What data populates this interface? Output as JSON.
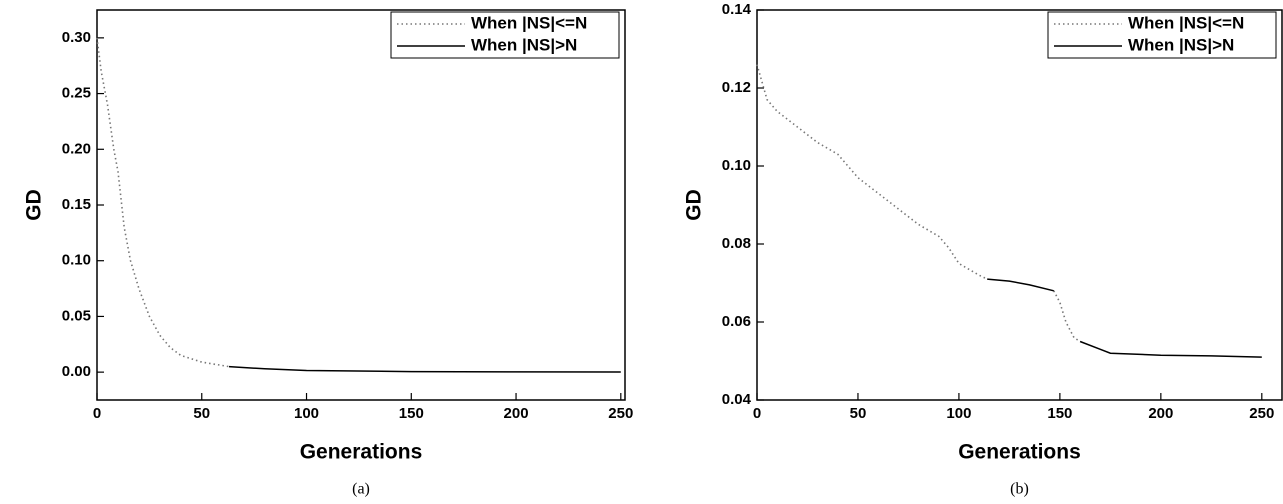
{
  "chart_data": [
    {
      "type": "line",
      "caption": "(a)",
      "x_label": "Generations",
      "y_label": "GD",
      "xlim": [
        0,
        252
      ],
      "ylim": [
        -0.025,
        0.325
      ],
      "xticks": [
        0,
        50,
        100,
        150,
        200,
        250
      ],
      "yticks": [
        {
          "value": 0,
          "label": "0.00"
        },
        0.05,
        {
          "value": 0.1,
          "label": "0.10"
        },
        0.15,
        {
          "value": 0.2,
          "label": "0.20"
        },
        0.25,
        {
          "value": 0.3,
          "label": "0.30"
        }
      ],
      "series": [
        {
          "name": "When |NS|<=N",
          "color": "#777777",
          "style": "dotted",
          "x": [
            0,
            2,
            5,
            8,
            10,
            13,
            16,
            20,
            25,
            30,
            35,
            40,
            50,
            63
          ],
          "values": [
            0.3,
            0.27,
            0.24,
            0.2,
            0.18,
            0.13,
            0.1,
            0.075,
            0.05,
            0.033,
            0.022,
            0.015,
            0.009,
            0.005
          ]
        },
        {
          "name": "When |NS|>N",
          "color": "#000000",
          "style": "solid",
          "x": [
            63,
            80,
            100,
            150,
            200,
            250
          ],
          "values": [
            0.005,
            0.003,
            0.0015,
            0.0005,
            0.0002,
            0.0001
          ]
        }
      ]
    },
    {
      "type": "line",
      "caption": "(b)",
      "x_label": "Generations",
      "y_label": "GD",
      "xlim": [
        0,
        260
      ],
      "ylim": [
        0.04,
        0.14
      ],
      "xticks": [
        0,
        50,
        100,
        150,
        200,
        250
      ],
      "yticks": [
        0.04,
        0.06,
        0.08,
        {
          "value": 0.1,
          "label": "0.10"
        },
        0.12,
        0.14
      ],
      "series": [
        {
          "name": "When |NS|<=N",
          "color": "#777777",
          "style": "dotted",
          "x": [
            0,
            5,
            10,
            20,
            30,
            40,
            50,
            60,
            70,
            80,
            90,
            95,
            100,
            110,
            114,
            130,
            147,
            150,
            153,
            157,
            160
          ],
          "values": [
            0.126,
            0.117,
            0.114,
            0.11,
            0.106,
            0.103,
            0.097,
            0.093,
            0.089,
            0.085,
            0.082,
            0.079,
            0.075,
            0.072,
            0.071,
            null,
            0.068,
            0.065,
            0.06,
            0.056,
            0.055
          ]
        },
        {
          "name": "When |NS|>N",
          "color": "#000000",
          "style": "solid",
          "x": [
            114,
            125,
            135,
            147,
            153,
            160,
            170,
            175,
            200,
            225,
            250
          ],
          "values": [
            0.071,
            0.0705,
            0.0695,
            0.068,
            null,
            0.055,
            0.053,
            0.052,
            0.0515,
            0.0513,
            0.051
          ]
        }
      ]
    }
  ]
}
